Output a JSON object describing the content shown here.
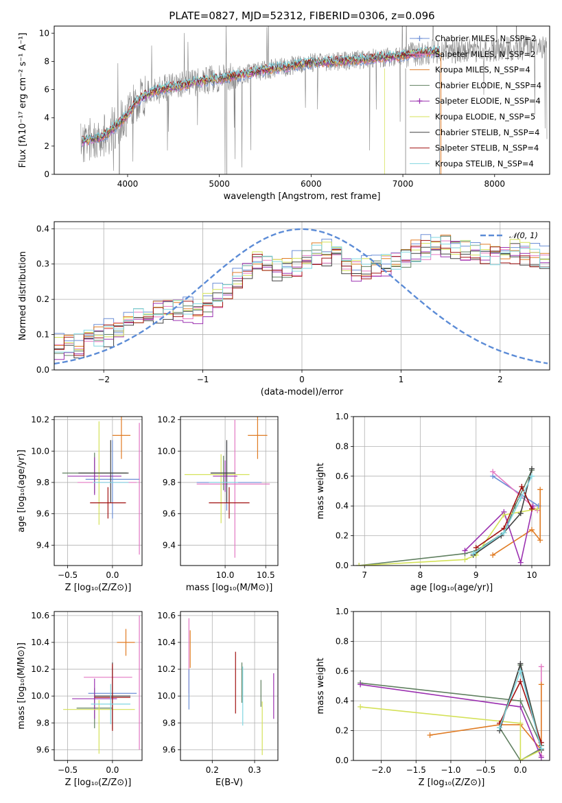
{
  "chart_data": [
    {
      "id": "spectrum",
      "type": "line",
      "title": "PLATE=0827, MJD=52312, FIBERID=0306, z=0.096",
      "xlabel": "wavelength [Angstrom, rest frame]",
      "ylabel": "Flux [fλ10⁻¹⁷ erg cm⁻² s⁻¹ A⁻¹]",
      "xlim": [
        3200,
        8600
      ],
      "ylim": [
        0,
        10.5
      ],
      "xticks": [
        4000,
        5000,
        6000,
        7000,
        8000
      ],
      "yticks": [
        0,
        2,
        4,
        6,
        8,
        10
      ],
      "grid": false,
      "legend": "top-right",
      "observed_spectrum": {
        "color": "#808080",
        "x_range": [
          3490,
          8570
        ]
      },
      "continuum_shape": {
        "x": [
          3500,
          3600,
          3700,
          3800,
          3900,
          4000,
          4100,
          4200,
          4300,
          4400,
          4500,
          4600,
          4800,
          5000,
          5200,
          5500,
          5800,
          6000,
          6200,
          6500,
          6800,
          7000,
          7200,
          7400
        ],
        "y": [
          2.3,
          2.5,
          2.6,
          3.0,
          3.6,
          4.2,
          5.2,
          5.6,
          5.9,
          6.1,
          6.2,
          6.3,
          6.6,
          6.8,
          7.0,
          7.4,
          7.7,
          7.9,
          7.95,
          8.1,
          8.3,
          8.4,
          8.6,
          8.7
        ]
      },
      "series": [
        {
          "name": "Chabrier MILES, N_SSP=2",
          "color": "#6b8ed6"
        },
        {
          "name": "Salpeter MILES, N_SSP=2",
          "color": "#e377c2"
        },
        {
          "name": "Kroupa MILES, N_SSP=4",
          "color": "#e07b23"
        },
        {
          "name": "Chabrier ELODIE, N_SSP=4",
          "color": "#5f7f5f"
        },
        {
          "name": "Salpeter ELODIE, N_SSP=4",
          "color": "#9b30b0"
        },
        {
          "name": "Kroupa ELODIE, N_SSP=5",
          "color": "#d4e157"
        },
        {
          "name": "Chabrier STELIB, N_SSP=4",
          "color": "#404040"
        },
        {
          "name": "Salpeter STELIB, N_SSP=4",
          "color": "#a01010"
        },
        {
          "name": "Kroupa STELIB, N_SSP=4",
          "color": "#7fd6e0"
        }
      ]
    },
    {
      "id": "residuals",
      "type": "histogram",
      "xlabel": "(data-model)/error",
      "ylabel": "Normed distribution",
      "xlim": [
        -2.5,
        2.5
      ],
      "ylim": [
        0,
        0.42
      ],
      "xticks": [
        -2,
        -1,
        0,
        1,
        2
      ],
      "yticks": [
        0.0,
        0.1,
        0.2,
        0.3,
        0.4
      ],
      "grid": true,
      "legend": "top-right",
      "reference_curve": {
        "name": "𝒩(0, 1)",
        "color": "#5b8bd6"
      },
      "bin_width": 0.1,
      "base_profile": [
        0.05,
        0.06,
        0.065,
        0.07,
        0.08,
        0.09,
        0.1,
        0.11,
        0.13,
        0.15,
        0.16,
        0.17,
        0.175,
        0.17,
        0.165,
        0.16,
        0.18,
        0.2,
        0.22,
        0.25,
        0.28,
        0.3,
        0.3,
        0.285,
        0.29,
        0.29,
        0.31,
        0.32,
        0.33,
        0.32,
        0.3,
        0.285,
        0.28,
        0.285,
        0.295,
        0.31,
        0.32,
        0.33,
        0.34,
        0.345,
        0.35,
        0.345,
        0.335,
        0.325,
        0.32,
        0.32,
        0.325,
        0.33,
        0.325,
        0.315,
        0.31,
        0.3,
        0.29,
        0.29,
        0.29,
        0.3,
        0.3,
        0.3,
        0.31,
        0.3,
        0.275,
        0.24,
        0.21,
        0.2,
        0.19,
        0.17,
        0.16,
        0.15,
        0.14,
        0.13,
        0.12,
        0.11,
        0.1,
        0.1,
        0.1,
        0.09,
        0.08,
        0.075,
        0.07,
        0.06,
        0.055,
        0.05,
        0.05,
        0.05,
        0.05
      ],
      "series_offsets": [
        {
          "name": "Chabrier MILES",
          "color": "#6b8ed6",
          "shift": 0.02,
          "seed": 1
        },
        {
          "name": "Salpeter MILES",
          "color": "#e377c2",
          "shift": 0.0,
          "seed": 2
        },
        {
          "name": "Kroupa MILES",
          "color": "#e07b23",
          "shift": 0.01,
          "seed": 3
        },
        {
          "name": "Chabrier ELODIE",
          "color": "#5f7f5f",
          "shift": 0.0,
          "seed": 4
        },
        {
          "name": "Salpeter ELODIE",
          "color": "#9b30b0",
          "shift": -0.005,
          "seed": 5
        },
        {
          "name": "Kroupa ELODIE",
          "color": "#d4e157",
          "shift": 0.01,
          "seed": 6
        },
        {
          "name": "Chabrier STELIB",
          "color": "#404040",
          "shift": -0.01,
          "seed": 7
        },
        {
          "name": "Salpeter STELIB",
          "color": "#a01010",
          "shift": 0.0,
          "seed": 8
        },
        {
          "name": "Kroupa STELIB",
          "color": "#7fd6e0",
          "shift": 0.005,
          "seed": 9
        }
      ]
    },
    {
      "id": "age-vs-Z",
      "type": "errorbar",
      "xlabel": "Z [log₁₀(Z/Z⊙)]",
      "ylabel": "age  [log₁₀(age/yr)]",
      "xlim": [
        -0.65,
        0.33
      ],
      "ylim": [
        9.27,
        10.22
      ],
      "xticks": [
        -0.5,
        0.0
      ],
      "xtick_labels": [
        "−0.5",
        "0.0"
      ],
      "yticks": [
        9.4,
        9.6,
        9.8,
        10.0,
        10.2
      ],
      "ytick_labels": [
        "9.4",
        "9.6",
        "9.8",
        "10.0",
        "10.2"
      ],
      "grid": true,
      "points": [
        {
          "x": 0.1,
          "y": 10.1,
          "xerr": 0.1,
          "yerr": 0.15,
          "color": "#e07b23"
        },
        {
          "x": 0.3,
          "y": 9.76,
          "xerr": 0.0,
          "yerr": 0.42,
          "color": "#e377c2"
        },
        {
          "x": -0.06,
          "y": 9.8,
          "xerr": 0.33,
          "yerr": 0.0,
          "color": "#e377c2"
        },
        {
          "x": 0.0,
          "y": 9.82,
          "xerr": 0.3,
          "yerr": 0.25,
          "color": "#6b8ed6"
        },
        {
          "x": -0.2,
          "y": 9.86,
          "xerr": 0.36,
          "yerr": 0.13,
          "color": "#5f7f5f"
        },
        {
          "x": -0.2,
          "y": 9.84,
          "xerr": 0.3,
          "yerr": 0.12,
          "color": "#9b30b0"
        },
        {
          "x": -0.15,
          "y": 9.86,
          "xerr": 0.0,
          "yerr": 0.33,
          "color": "#d4e157"
        },
        {
          "x": -0.1,
          "y": 9.86,
          "xerr": 0.28,
          "yerr": 0.0,
          "color": "#404040"
        },
        {
          "x": -0.02,
          "y": 9.87,
          "xerr": 0.0,
          "yerr": 0.2,
          "color": "#404040"
        },
        {
          "x": -0.05,
          "y": 9.67,
          "xerr": 0.2,
          "yerr": 0.1,
          "color": "#a01010"
        },
        {
          "x": -0.02,
          "y": 9.8,
          "xerr": 0.2,
          "yerr": 0.0,
          "color": "#7fd6e0"
        }
      ]
    },
    {
      "id": "age-vs-mass",
      "type": "errorbar",
      "xlabel": "mass [log₁₀(M/M⊙)]",
      "ylabel": "",
      "xlim": [
        9.45,
        10.65
      ],
      "ylim": [
        9.27,
        10.22
      ],
      "xticks": [
        10.0,
        10.5
      ],
      "xtick_labels": [
        "10.0",
        "10.5"
      ],
      "yticks": [
        9.4,
        9.6,
        9.8,
        10.0,
        10.2
      ],
      "ytick_labels": [
        "9.4",
        "9.6",
        "9.8",
        "10.0",
        "10.2"
      ],
      "grid": true,
      "points": [
        {
          "x": 10.4,
          "y": 10.1,
          "xerr": 0.12,
          "yerr": 0.15,
          "color": "#e07b23"
        },
        {
          "x": 10.12,
          "y": 9.76,
          "xerr": 0.0,
          "yerr": 0.44,
          "color": "#e377c2"
        },
        {
          "x": 10.1,
          "y": 9.79,
          "xerr": 0.45,
          "yerr": 0.0,
          "color": "#e377c2"
        },
        {
          "x": 10.02,
          "y": 9.84,
          "xerr": 0.0,
          "yerr": 0.22,
          "color": "#6b8ed6"
        },
        {
          "x": 10.05,
          "y": 9.8,
          "xerr": 0.4,
          "yerr": 0.0,
          "color": "#6b8ed6"
        },
        {
          "x": 9.9,
          "y": 9.85,
          "xerr": 0.4,
          "yerr": 0.0,
          "color": "#d4e157"
        },
        {
          "x": 9.95,
          "y": 9.76,
          "xerr": 0.0,
          "yerr": 0.22,
          "color": "#d4e157"
        },
        {
          "x": 9.98,
          "y": 9.86,
          "xerr": 0.15,
          "yerr": 0.11,
          "color": "#5f7f5f"
        },
        {
          "x": 10.0,
          "y": 9.84,
          "xerr": 0.15,
          "yerr": 0.1,
          "color": "#9b30b0"
        },
        {
          "x": 9.97,
          "y": 9.86,
          "xerr": 0.15,
          "yerr": 0.0,
          "color": "#404040"
        },
        {
          "x": 10.02,
          "y": 9.87,
          "xerr": 0.0,
          "yerr": 0.2,
          "color": "#404040"
        },
        {
          "x": 10.05,
          "y": 9.67,
          "xerr": 0.25,
          "yerr": 0.1,
          "color": "#a01010"
        },
        {
          "x": 9.98,
          "y": 9.8,
          "xerr": 0.18,
          "yerr": 0.0,
          "color": "#7fd6e0"
        }
      ]
    },
    {
      "id": "weight-vs-age",
      "type": "line",
      "xlabel": "age  [log₁₀(age/yr)]",
      "ylabel": "mass weight",
      "xlim": [
        6.8,
        10.32
      ],
      "ylim": [
        0,
        1.0
      ],
      "xticks": [
        7,
        8,
        9,
        10
      ],
      "xtick_labels": [
        "7",
        "8",
        "9",
        "10"
      ],
      "yticks": [
        0.0,
        0.2,
        0.4,
        0.6,
        0.8,
        1.0
      ],
      "ytick_labels": [
        "0.0",
        "0.2",
        "0.4",
        "0.6",
        "0.8",
        "1.0"
      ],
      "grid": true,
      "series": [
        {
          "color": "#6b8ed6",
          "x": [
            9.3,
            10.12
          ],
          "y": [
            0.6,
            0.4
          ]
        },
        {
          "color": "#e377c2",
          "x": [
            9.3,
            10.1
          ],
          "y": [
            0.63,
            0.37
          ]
        },
        {
          "color": "#e07b23",
          "x": [
            9.3,
            10.0,
            10.15,
            10.15
          ],
          "y": [
            0.07,
            0.24,
            0.17,
            0.51
          ]
        },
        {
          "color": "#5f7f5f",
          "x": [
            6.9,
            8.8,
            9.0,
            9.5,
            9.7,
            10.0
          ],
          "y": [
            0.0,
            0.08,
            0.1,
            0.22,
            0.4,
            0.64
          ]
        },
        {
          "color": "#9b30b0",
          "x": [
            8.8,
            9.5,
            9.8,
            10.02
          ],
          "y": [
            0.1,
            0.36,
            0.02,
            0.4
          ]
        },
        {
          "color": "#d4e157",
          "x": [
            6.9,
            8.8,
            9.0,
            9.5,
            10.1
          ],
          "y": [
            0.0,
            0.04,
            0.07,
            0.34,
            0.38
          ]
        },
        {
          "color": "#404040",
          "x": [
            8.95,
            9.45,
            9.8,
            10.0
          ],
          "y": [
            0.07,
            0.2,
            0.35,
            0.65
          ]
        },
        {
          "color": "#a01010",
          "x": [
            9.0,
            9.5,
            9.82,
            10.0
          ],
          "y": [
            0.12,
            0.25,
            0.53,
            0.38
          ]
        },
        {
          "color": "#7fd6e0",
          "x": [
            8.95,
            9.5,
            9.8,
            10.0
          ],
          "y": [
            0.08,
            0.22,
            0.45,
            0.6
          ]
        }
      ]
    },
    {
      "id": "mass-vs-Z",
      "type": "errorbar",
      "xlabel": "Z [log₁₀(Z/Z⊙)]",
      "ylabel": "mass [log₁₀(M/M⊙)]",
      "xlim": [
        -0.65,
        0.33
      ],
      "ylim": [
        9.52,
        10.63
      ],
      "xticks": [
        -0.5,
        0.0
      ],
      "xtick_labels": [
        "−0.5",
        "0.0"
      ],
      "yticks": [
        9.6,
        9.8,
        10.0,
        10.2,
        10.4,
        10.6
      ],
      "ytick_labels": [
        "9.6",
        "9.8",
        "10.0",
        "10.2",
        "10.4",
        "10.6"
      ],
      "grid": true,
      "points": [
        {
          "x": 0.15,
          "y": 10.4,
          "xerr": 0.1,
          "yerr": 0.1,
          "color": "#e07b23"
        },
        {
          "x": 0.3,
          "y": 10.1,
          "xerr": 0.0,
          "yerr": 0.5,
          "color": "#e377c2"
        },
        {
          "x": -0.05,
          "y": 10.14,
          "xerr": 0.27,
          "yerr": 0.0,
          "color": "#e377c2"
        },
        {
          "x": 0.0,
          "y": 10.02,
          "xerr": 0.27,
          "yerr": 0.2,
          "color": "#6b8ed6"
        },
        {
          "x": -0.2,
          "y": 9.91,
          "xerr": 0.2,
          "yerr": 0.15,
          "color": "#5f7f5f"
        },
        {
          "x": -0.2,
          "y": 9.98,
          "xerr": 0.25,
          "yerr": 0.15,
          "color": "#9b30b0"
        },
        {
          "x": -0.15,
          "y": 9.9,
          "xerr": 0.4,
          "yerr": 0.0,
          "color": "#d4e157"
        },
        {
          "x": -0.15,
          "y": 9.77,
          "xerr": 0.0,
          "yerr": 0.2,
          "color": "#d4e157"
        },
        {
          "x": 0.0,
          "y": 10.0,
          "xerr": 0.2,
          "yerr": 0.25,
          "color": "#404040"
        },
        {
          "x": 0.0,
          "y": 9.99,
          "xerr": 0.2,
          "yerr": 0.25,
          "color": "#a01010"
        },
        {
          "x": -0.02,
          "y": 9.94,
          "xerr": 0.22,
          "yerr": 0.15,
          "color": "#7fd6e0"
        }
      ]
    },
    {
      "id": "mass-vs-EBV",
      "type": "errorbar",
      "xlabel": "E(B-V)",
      "ylabel": "",
      "xlim": [
        0.125,
        0.355
      ],
      "ylim": [
        9.52,
        10.63
      ],
      "xticks": [
        0.2,
        0.3
      ],
      "xtick_labels": [
        "0.2",
        "0.3"
      ],
      "yticks": [
        9.6,
        9.8,
        10.0,
        10.2,
        10.4,
        10.6
      ],
      "ytick_labels": [
        "9.6",
        "9.8",
        "10.0",
        "10.2",
        "10.4",
        "10.6"
      ],
      "grid": true,
      "points": [
        {
          "x": 0.145,
          "y": 10.3,
          "xerr": 0.0,
          "yerr": 0.28,
          "color": "#e377c2"
        },
        {
          "x": 0.148,
          "y": 10.35,
          "xerr": 0.0,
          "yerr": 0.14,
          "color": "#e07b23"
        },
        {
          "x": 0.145,
          "y": 10.05,
          "xerr": 0.0,
          "yerr": 0.15,
          "color": "#6b8ed6"
        },
        {
          "x": 0.255,
          "y": 10.1,
          "xerr": 0.0,
          "yerr": 0.23,
          "color": "#a01010"
        },
        {
          "x": 0.27,
          "y": 10.1,
          "xerr": 0.0,
          "yerr": 0.15,
          "color": "#5f7f5f"
        },
        {
          "x": 0.272,
          "y": 10.0,
          "xerr": 0.0,
          "yerr": 0.22,
          "color": "#7fd6e0"
        },
        {
          "x": 0.315,
          "y": 10.02,
          "xerr": 0.0,
          "yerr": 0.1,
          "color": "#5f7f5f"
        },
        {
          "x": 0.318,
          "y": 9.76,
          "xerr": 0.0,
          "yerr": 0.2,
          "color": "#d4e157"
        },
        {
          "x": 0.345,
          "y": 10.0,
          "xerr": 0.0,
          "yerr": 0.17,
          "color": "#9b30b0"
        }
      ]
    },
    {
      "id": "weight-vs-Z",
      "type": "line",
      "xlabel": "Z [log₁₀(Z/Z⊙)]",
      "ylabel": "mass weight",
      "xlim": [
        -2.4,
        0.42
      ],
      "ylim": [
        0,
        1.0
      ],
      "xticks": [
        -2.0,
        -1.5,
        -1.0,
        -0.5,
        0.0
      ],
      "xtick_labels": [
        "−2.0",
        "−1.5",
        "−1.0",
        "−0.5",
        "0.0"
      ],
      "yticks": [
        0.0,
        0.2,
        0.4,
        0.6,
        0.8,
        1.0
      ],
      "ytick_labels": [
        "0.0",
        "0.2",
        "0.4",
        "0.6",
        "0.8",
        "1.0"
      ],
      "grid": true,
      "series": [
        {
          "color": "#6b8ed6",
          "x": [
            0.0,
            0.3
          ],
          "y": [
            0.6,
            0.1
          ]
        },
        {
          "color": "#e377c2",
          "x": [
            0.3,
            0.3
          ],
          "y": [
            0.63,
            0.03
          ]
        },
        {
          "color": "#e07b23",
          "x": [
            -1.3,
            -0.3,
            0.0,
            0.3,
            0.3
          ],
          "y": [
            0.17,
            0.24,
            0.24,
            0.07,
            0.51
          ]
        },
        {
          "color": "#5f7f5f",
          "x": [
            -2.3,
            0.0,
            0.3,
            0.0,
            -0.3,
            0.0,
            0.3
          ],
          "y": [
            0.52,
            0.4,
            0.1,
            0.64,
            0.22,
            0.0,
            0.08
          ]
        },
        {
          "color": "#9b30b0",
          "x": [
            -2.3,
            0.0,
            0.3
          ],
          "y": [
            0.51,
            0.36,
            0.02
          ]
        },
        {
          "color": "#d4e157",
          "x": [
            -2.3,
            0.0,
            0.0,
            0.3
          ],
          "y": [
            0.36,
            0.25,
            0.0,
            0.07
          ]
        },
        {
          "color": "#404040",
          "x": [
            -0.3,
            0.0,
            0.3
          ],
          "y": [
            0.2,
            0.65,
            0.07
          ]
        },
        {
          "color": "#a01010",
          "x": [
            -0.3,
            0.0,
            0.3
          ],
          "y": [
            0.25,
            0.53,
            0.12
          ]
        },
        {
          "color": "#7fd6e0",
          "x": [
            -0.3,
            0.0,
            0.3
          ],
          "y": [
            0.22,
            0.6,
            0.08
          ]
        }
      ]
    }
  ]
}
